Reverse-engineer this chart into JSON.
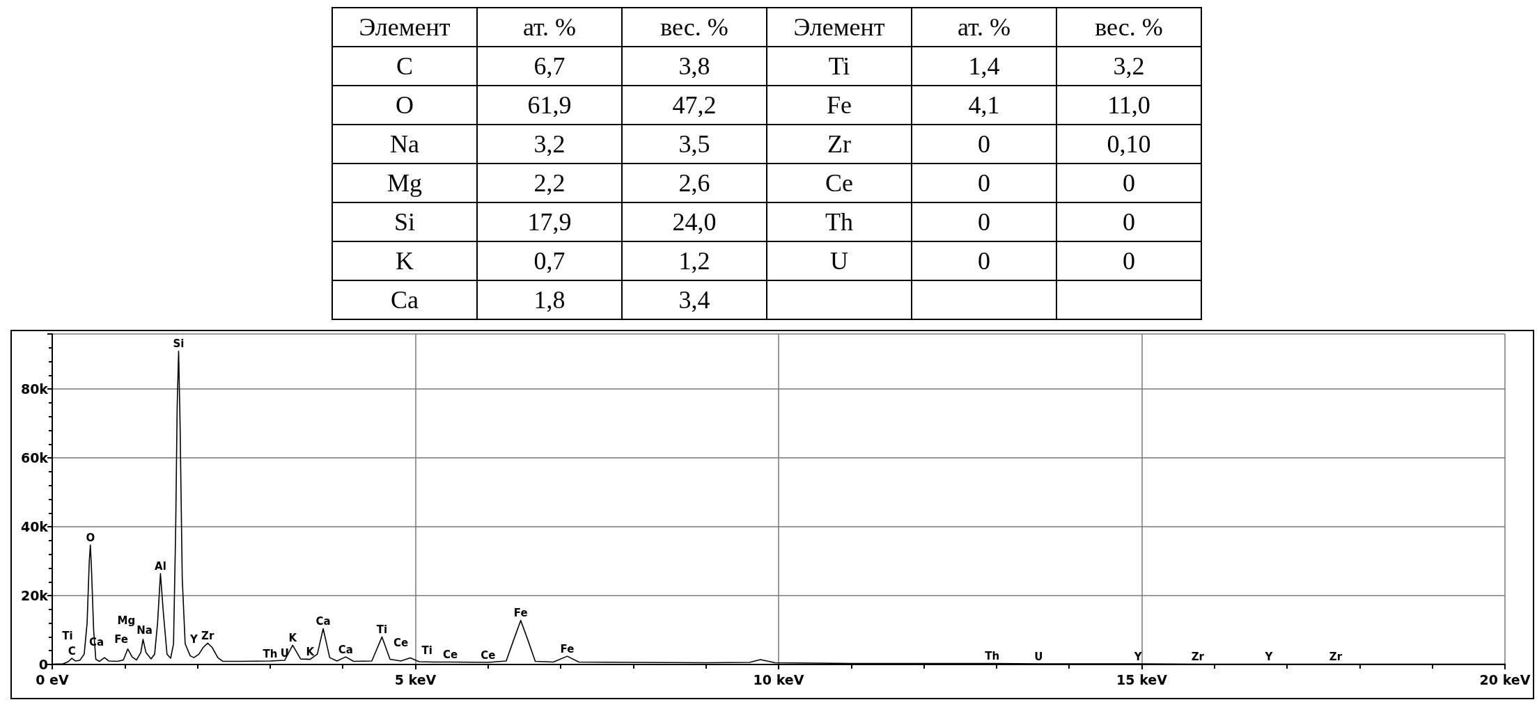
{
  "chart_data": [
    {
      "type": "other",
      "annotations": [
        "Элемент",
        "ат. %",
        "вес. %",
        "Элемент",
        "ат. %",
        "вес. %",
        "C",
        "6,7",
        "3,8",
        "Ti",
        "1,4",
        "3,2",
        "O",
        "61,9",
        "47,2",
        "Fe",
        "4,1",
        "11,0",
        "Na",
        "3,2",
        "3,5",
        "Zr",
        "0",
        "0,10",
        "Mg",
        "2,2",
        "2,6",
        "Ce",
        "0",
        "0",
        "Si",
        "17,9",
        "24,0",
        "Th",
        "0",
        "0",
        "K",
        "0,7",
        "1,2",
        "U",
        "0",
        "0",
        "Ca",
        "1,8",
        "3,4"
      ]
    },
    {
      "type": "line",
      "marker": "none",
      "grid": true,
      "color": "#000000",
      "x": [
        0,
        0.15,
        0.22,
        0.27,
        0.32,
        0.38,
        0.44,
        0.48,
        0.51,
        0.525,
        0.54,
        0.57,
        0.6,
        0.65,
        0.72,
        0.78,
        0.9,
        0.98,
        1.04,
        1.1,
        1.16,
        1.22,
        1.25,
        1.29,
        1.36,
        1.41,
        1.45,
        1.49,
        1.53,
        1.58,
        1.63,
        1.67,
        1.7,
        1.72,
        1.74,
        1.76,
        1.79,
        1.83,
        1.9,
        1.95,
        2.02,
        2.08,
        2.14,
        2.2,
        2.28,
        2.35,
        2.6,
        3.0,
        3.2,
        3.31,
        3.42,
        3.55,
        3.65,
        3.73,
        3.82,
        3.92,
        4.04,
        4.15,
        4.4,
        4.54,
        4.65,
        4.8,
        4.93,
        5.05,
        5.25,
        5.5,
        6.0,
        6.25,
        6.35,
        6.45,
        6.55,
        6.65,
        6.9,
        7.09,
        7.25,
        8,
        9,
        9.6,
        9.75,
        9.95,
        11,
        12.5,
        12.94,
        13.58,
        14,
        14.95,
        15.77,
        16.75,
        17.67,
        18,
        20
      ],
      "values": [
        100,
        200,
        800,
        1800,
        1000,
        1200,
        3000,
        12000,
        30000,
        34700,
        28000,
        10000,
        1500,
        900,
        2000,
        1000,
        900,
        1300,
        4500,
        2200,
        1300,
        3500,
        7300,
        3500,
        1600,
        3000,
        12000,
        26400,
        15000,
        3000,
        1800,
        6000,
        40000,
        75000,
        91000,
        70000,
        25000,
        6000,
        2500,
        2000,
        3000,
        5000,
        6200,
        5000,
        2000,
        900,
        900,
        1000,
        1200,
        5600,
        1600,
        1500,
        3000,
        10400,
        2000,
        1000,
        2200,
        900,
        1000,
        8000,
        1500,
        1000,
        1900,
        800,
        700,
        700,
        600,
        1000,
        7000,
        12800,
        7000,
        900,
        700,
        2400,
        700,
        600,
        500,
        600,
        1400,
        500,
        300,
        300,
        300,
        200,
        200,
        200,
        100,
        100,
        100,
        100,
        100
      ],
      "xlim": [
        0,
        20
      ],
      "xticks": [
        {
          "value": 0,
          "label": "0 eV"
        },
        {
          "value": 1,
          "label": null
        },
        {
          "value": 2,
          "label": null
        },
        {
          "value": 3,
          "label": null
        },
        {
          "value": 4,
          "label": null
        },
        {
          "value": 5,
          "label": "5 keV"
        },
        {
          "value": 6,
          "label": null
        },
        {
          "value": 7,
          "label": null
        },
        {
          "value": 8,
          "label": null
        },
        {
          "value": 9,
          "label": null
        },
        {
          "value": 10,
          "label": "10 keV"
        },
        {
          "value": 11,
          "label": null
        },
        {
          "value": 12,
          "label": null
        },
        {
          "value": 13,
          "label": null
        },
        {
          "value": 14,
          "label": null
        },
        {
          "value": 15,
          "label": "15 keV"
        },
        {
          "value": 16,
          "label": null
        },
        {
          "value": 17,
          "label": null
        },
        {
          "value": 18,
          "label": null
        },
        {
          "value": 19,
          "label": null
        },
        {
          "value": 20,
          "label": "20 keV"
        }
      ],
      "ylim": [
        0,
        96000
      ],
      "yticks": [
        {
          "value": 0,
          "label": "0"
        },
        {
          "value": 4000,
          "label": null
        },
        {
          "value": 8000,
          "label": null
        },
        {
          "value": 12000,
          "label": null
        },
        {
          "value": 16000,
          "label": null
        },
        {
          "value": 20000,
          "label": "20k"
        },
        {
          "value": 24000,
          "label": null
        },
        {
          "value": 28000,
          "label": null
        },
        {
          "value": 32000,
          "label": null
        },
        {
          "value": 36000,
          "label": null
        },
        {
          "value": 40000,
          "label": "40k"
        },
        {
          "value": 44000,
          "label": null
        },
        {
          "value": 48000,
          "label": null
        },
        {
          "value": 52000,
          "label": null
        },
        {
          "value": 56000,
          "label": null
        },
        {
          "value": 60000,
          "label": "60k"
        },
        {
          "value": 64000,
          "label": null
        },
        {
          "value": 68000,
          "label": null
        },
        {
          "value": 72000,
          "label": null
        },
        {
          "value": 76000,
          "label": null
        },
        {
          "value": 80000,
          "label": "80k"
        },
        {
          "value": 84000,
          "label": null
        },
        {
          "value": 88000,
          "label": null
        },
        {
          "value": 92000,
          "label": null
        },
        {
          "value": 96000,
          "label": null
        }
      ],
      "annotations": [
        {
          "text": "C",
          "x": 0.27,
          "y": 1800
        },
        {
          "text": "Ca",
          "x": 0.38,
          "y": 1200
        },
        {
          "text": "Ti",
          "x": 0.44,
          "y": 3000
        },
        {
          "text": "O",
          "x": 0.525,
          "y": 34700
        },
        {
          "text": "Fe",
          "x": 0.72,
          "y": 2000
        },
        {
          "text": "Na",
          "x": 1.04,
          "y": 4500
        },
        {
          "text": "Mg",
          "x": 1.25,
          "y": 7300
        },
        {
          "text": "Al",
          "x": 1.49,
          "y": 26400
        },
        {
          "text": "Si",
          "x": 1.74,
          "y": 91000
        },
        {
          "text": "Y",
          "x": 1.95,
          "y": 2000
        },
        {
          "text": "Zr",
          "x": 2.14,
          "y": 6200
        },
        {
          "text": "Th",
          "x": 3.0,
          "y": 1000
        },
        {
          "text": "U",
          "x": 3.2,
          "y": 1200
        },
        {
          "text": "K",
          "x": 3.31,
          "y": 5600
        },
        {
          "text": "K",
          "x": 3.55,
          "y": 1500
        },
        {
          "text": "Ca",
          "x": 3.73,
          "y": 10400
        },
        {
          "text": "Ca",
          "x": 4.04,
          "y": 2200
        },
        {
          "text": "Ti",
          "x": 4.54,
          "y": 8000
        },
        {
          "text": "Ce",
          "x": 4.8,
          "y": 1000
        },
        {
          "text": "Ti",
          "x": 4.93,
          "y": 1900
        },
        {
          "text": "Ce",
          "x": 5.25,
          "y": 700
        },
        {
          "text": "Ce",
          "x": 6.0,
          "y": 600
        },
        {
          "text": "Fe",
          "x": 6.45,
          "y": 12800
        },
        {
          "text": "Fe",
          "x": 7.09,
          "y": 2400
        },
        {
          "text": "Th",
          "x": 12.94,
          "y": 300
        },
        {
          "text": "U",
          "x": 13.58,
          "y": 200
        },
        {
          "text": "Y",
          "x": 14.95,
          "y": 200
        },
        {
          "text": "Zr",
          "x": 15.77,
          "y": 100
        },
        {
          "text": "Y",
          "x": 16.75,
          "y": 100
        },
        {
          "text": "Zr",
          "x": 17.67,
          "y": 100
        }
      ]
    }
  ]
}
